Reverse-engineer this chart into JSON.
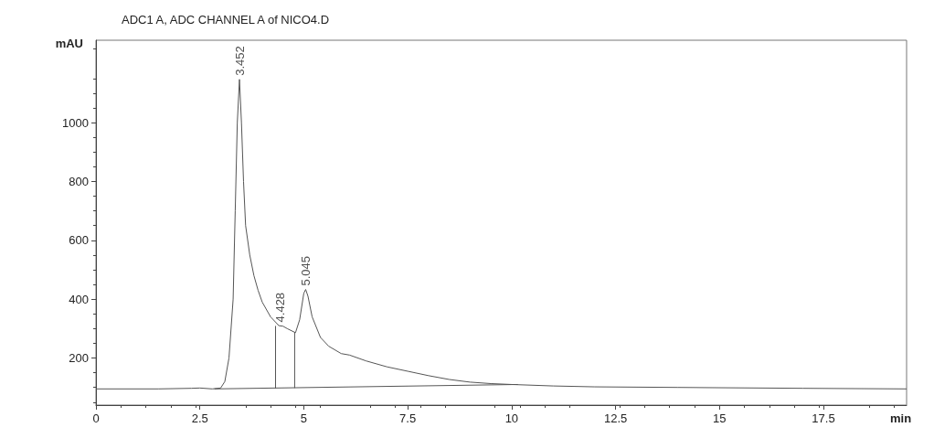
{
  "chart_data": {
    "type": "line",
    "title": "ADC1 A, ADC CHANNEL A of NICO4.D",
    "xlabel": "min",
    "ylabel": "mAU",
    "xlim": [
      0,
      19.5
    ],
    "ylim": [
      40,
      1280
    ],
    "xticks": [
      0,
      2.5,
      5,
      7.5,
      10,
      12.5,
      15,
      17.5
    ],
    "yticks": [
      200,
      400,
      600,
      800,
      1000
    ],
    "grid": false,
    "marker": "none",
    "line_style": "solid",
    "series": [
      {
        "color": "#555555",
        "x": [
          0,
          1.5,
          2.3,
          2.5,
          2.8,
          3.0,
          3.1,
          3.2,
          3.3,
          3.35,
          3.4,
          3.452,
          3.5,
          3.55,
          3.6,
          3.7,
          3.8,
          3.9,
          4.0,
          4.2,
          4.4,
          4.5,
          4.6,
          4.8,
          4.9,
          5.0,
          5.045,
          5.1,
          5.2,
          5.4,
          5.6,
          5.9,
          6.1,
          6.5,
          7.0,
          7.5,
          8.0,
          8.5,
          9.0,
          9.5,
          10.0,
          11.0,
          12.0,
          14.0,
          17.0,
          19.5
        ],
        "values": [
          95,
          95,
          97,
          98,
          95,
          98,
          120,
          200,
          400,
          700,
          1000,
          1147,
          1000,
          800,
          650,
          550,
          480,
          430,
          390,
          340,
          310,
          308,
          300,
          286,
          330,
          420,
          433,
          410,
          340,
          270,
          240,
          215,
          210,
          190,
          170,
          155,
          140,
          127,
          118,
          113,
          110,
          105,
          102,
          100,
          97,
          95
        ]
      },
      {
        "color": "#555555",
        "x": [
          2.85,
          10.15
        ],
        "values": [
          95,
          110
        ]
      },
      {
        "color": "#555555",
        "x": [
          4.32,
          4.32
        ],
        "values": [
          97,
          309
        ]
      },
      {
        "color": "#555555",
        "x": [
          4.78,
          4.78
        ],
        "values": [
          98,
          288
        ]
      }
    ],
    "annotations": [
      {
        "text": "3.452",
        "x": 3.452,
        "y": 1147
      },
      {
        "text": "4.428",
        "x": 4.428,
        "y": 309
      },
      {
        "text": "5.045",
        "x": 5.045,
        "y": 433
      }
    ]
  }
}
